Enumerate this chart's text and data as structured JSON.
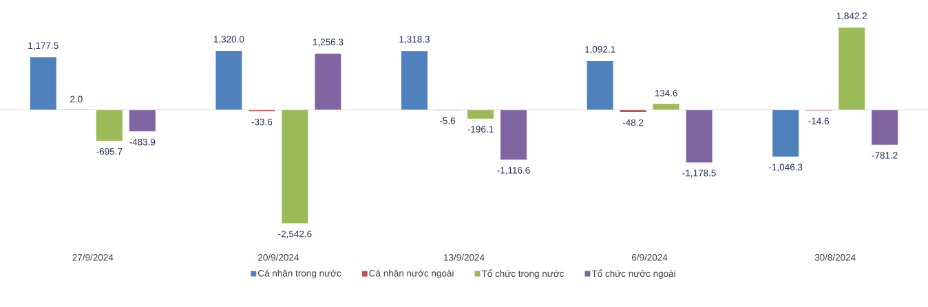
{
  "chart_data": {
    "type": "bar",
    "categories": [
      "27/9/2024",
      "20/9/2024",
      "13/9/2024",
      "6/9/2024",
      "30/8/2024"
    ],
    "series": [
      {
        "name": "Cá nhân trong nước",
        "color": "#4f81bd",
        "values": [
          1177.5,
          1320.0,
          1318.3,
          1092.1,
          -1046.3
        ],
        "value_labels": [
          "1,177.5",
          "1,320.0",
          "1,318.3",
          "1,092.1",
          "-1,046.3"
        ]
      },
      {
        "name": "Cá nhân nước ngoài",
        "color": "#c0504d",
        "values": [
          2.0,
          -33.6,
          -5.6,
          -48.2,
          -14.6
        ],
        "value_labels": [
          "2.0",
          "-33.6",
          "-5.6",
          "-48.2",
          "-14.6"
        ]
      },
      {
        "name": "Tổ chức trong nước",
        "color": "#9bbb59",
        "values": [
          -695.7,
          -2542.6,
          -196.1,
          134.6,
          1842.2
        ],
        "value_labels": [
          "-695.7",
          "-2,542.6",
          "-196.1",
          "134.6",
          "1,842.2"
        ]
      },
      {
        "name": "Tổ chức nước ngoài",
        "color": "#8064a2",
        "values": [
          -483.9,
          1256.3,
          -1116.6,
          -1178.5,
          -781.2
        ],
        "value_labels": [
          "-483.9",
          "1,256.3",
          "-1,116.6",
          "-1,178.5",
          "-781.2"
        ]
      }
    ],
    "legend": "bottom"
  }
}
